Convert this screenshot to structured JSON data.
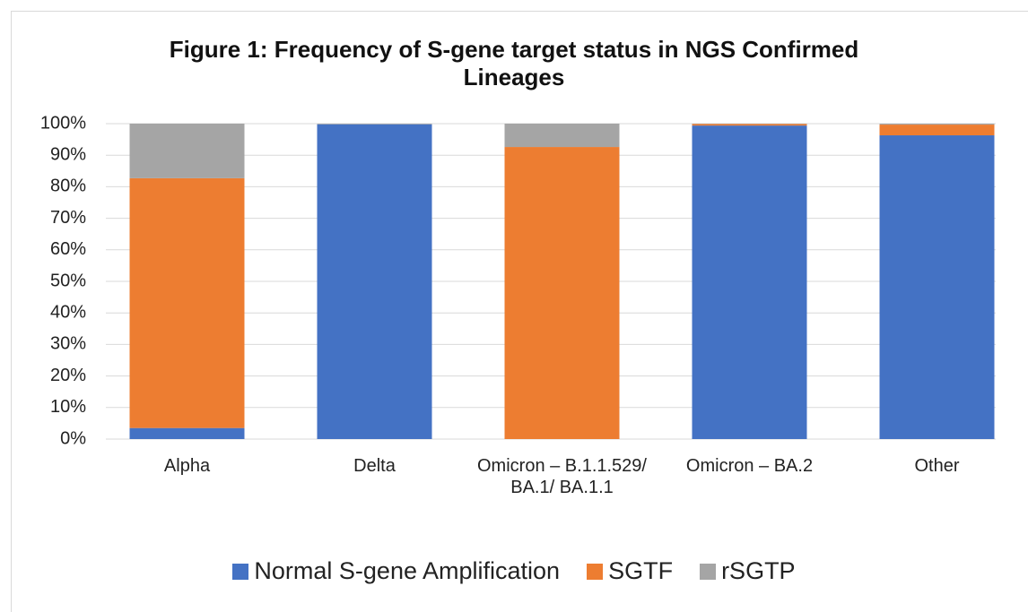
{
  "chart_data": {
    "type": "stacked_bar",
    "title": "Figure 1: Frequency of S-gene target status in NGS Confirmed Lineages",
    "categories": [
      "Alpha",
      "Delta",
      "Omicron – B.1.1.529/ BA.1/ BA.1.1",
      "Omicron – BA.2",
      "Other"
    ],
    "series": [
      {
        "name": "Normal S-gene Amplification",
        "color": "#4472c4",
        "values": [
          3.5,
          99.8,
          0,
          99.4,
          96.3
        ]
      },
      {
        "name": "SGTF",
        "color": "#ed7d31",
        "values": [
          79.2,
          0,
          92.6,
          0.5,
          3.4
        ]
      },
      {
        "name": "rSGTP",
        "color": "#a5a5a5",
        "values": [
          17.3,
          0.2,
          7.4,
          0.1,
          0.3
        ]
      }
    ],
    "ylim": [
      0,
      100
    ],
    "yticks": [
      {
        "value": 0,
        "label": "0%"
      },
      {
        "value": 10,
        "label": "10%"
      },
      {
        "value": 20,
        "label": "20%"
      },
      {
        "value": 30,
        "label": "30%"
      },
      {
        "value": 40,
        "label": "40%"
      },
      {
        "value": 50,
        "label": "50%"
      },
      {
        "value": 60,
        "label": "60%"
      },
      {
        "value": 70,
        "label": "70%"
      },
      {
        "value": 80,
        "label": "80%"
      },
      {
        "value": 90,
        "label": "90%"
      },
      {
        "value": 100,
        "label": "100%"
      }
    ],
    "grid": true,
    "legend": "bottom"
  }
}
